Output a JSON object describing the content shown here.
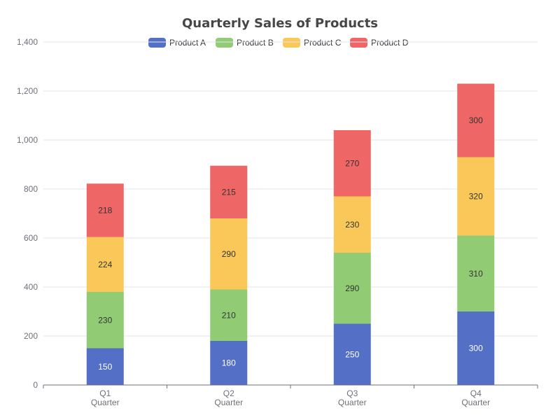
{
  "chart_data": {
    "type": "bar",
    "stacked": true,
    "title": "Quarterly Sales of Products",
    "xlabel": "Quarter",
    "ylabel": "",
    "categories": [
      "Q1",
      "Q2",
      "Q3",
      "Q4"
    ],
    "series": [
      {
        "name": "Product A",
        "color": "#5470c6",
        "label_color": "#ffffff",
        "values": [
          150,
          180,
          250,
          300
        ]
      },
      {
        "name": "Product B",
        "color": "#91cc75",
        "label_color": "#333333",
        "values": [
          230,
          210,
          290,
          310
        ]
      },
      {
        "name": "Product C",
        "color": "#fac858",
        "label_color": "#333333",
        "values": [
          224,
          290,
          230,
          320
        ]
      },
      {
        "name": "Product D",
        "color": "#ee6666",
        "label_color": "#333333",
        "values": [
          218,
          215,
          270,
          300
        ]
      }
    ],
    "ylim": [
      0,
      1400
    ],
    "yticks": [
      0,
      200,
      400,
      600,
      800,
      1000,
      1200,
      1400
    ],
    "ytick_labels": [
      "0",
      "200",
      "400",
      "600",
      "800",
      "1,000",
      "1,200",
      "1,400"
    ],
    "grid": true,
    "legend_position": "top-center"
  }
}
